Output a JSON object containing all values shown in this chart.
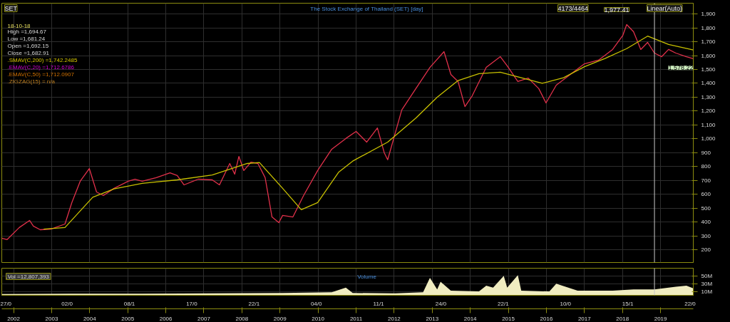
{
  "chart_data": [
    {
      "type": "line",
      "title": "The Stock Exchange of Thailand (SET) [day]",
      "series": [
        {
          "color": "#e0304a",
          "x": [
            2001.69,
            2001.83,
            2002.15,
            2002.42,
            2002.52,
            2002.7,
            2002.98,
            2003.35,
            2003.53,
            2003.75,
            2003.99,
            2004.18,
            2004.36,
            2004.64,
            2005.01,
            2005.19,
            2005.38,
            2005.75,
            2006.11,
            2006.3,
            2006.48,
            2006.85,
            2007.22,
            2007.41,
            2007.68,
            2007.81,
            2007.92,
            2008.05,
            2008.24,
            2008.42,
            2008.61,
            2008.79,
            2008.97,
            2009.07,
            2009.34,
            2009.62,
            2009.99,
            2010.36,
            2010.73,
            2011.0,
            2011.28,
            2011.56,
            2011.74,
            2011.83,
            2012.2,
            2012.57,
            2012.94,
            2013.31,
            2013.49,
            2013.68,
            2013.86,
            2014.05,
            2014.42,
            2014.79,
            2014.97,
            2015.25,
            2015.52,
            2015.8,
            2015.99,
            2016.26,
            2016.63,
            2017.0,
            2017.37,
            2017.74,
            2018.01,
            2018.11,
            2018.29,
            2018.48,
            2018.66,
            2018.84,
            2019.03,
            2019.21,
            2019.4,
            2019.68,
            2019.86
          ],
          "values": [
            285,
            275,
            362,
            413,
            372,
            346,
            351,
            387,
            541,
            695,
            787,
            618,
            592,
            644,
            695,
            710,
            695,
            721,
            756,
            736,
            669,
            710,
            705,
            669,
            823,
            746,
            874,
            772,
            833,
            823,
            721,
            438,
            397,
            449,
            438,
            592,
            772,
            926,
            1003,
            1054,
            977,
            1079,
            900,
            850,
            1208,
            1362,
            1515,
            1628,
            1464,
            1413,
            1233,
            1310,
            1515,
            1592,
            1526,
            1413,
            1438,
            1362,
            1259,
            1387,
            1464,
            1541,
            1567,
            1644,
            1746,
            1823,
            1772,
            1644,
            1695,
            1618,
            1592,
            1644,
            1618,
            1592,
            1578
          ]
        },
        {
          "color": "#c8c000",
          "x": [
            2002.79,
            2003.35,
            2004.08,
            2004.64,
            2005.38,
            2006.3,
            2007.22,
            2008.14,
            2008.46,
            2009.07,
            2009.56,
            2009.99,
            2010.54,
            2010.91,
            2011.83,
            2012.57,
            2013.13,
            2013.68,
            2014.23,
            2014.79,
            2015.34,
            2015.89,
            2016.45,
            2017.0,
            2017.55,
            2018.11,
            2018.66,
            2019.21,
            2019.86
          ],
          "values": [
            350,
            362,
            580,
            640,
            680,
            705,
            740,
            823,
            830,
            644,
            490,
            541,
            760,
            840,
            977,
            1150,
            1300,
            1420,
            1470,
            1480,
            1440,
            1400,
            1440,
            1520,
            1580,
            1650,
            1740,
            1680,
            1640
          ]
        }
      ],
      "xlim": [
        2001.69,
        2019.86
      ],
      "ylim": [
        110,
        1977
      ],
      "xticks": [
        2002,
        2003,
        2004,
        2005,
        2006,
        2007,
        2008,
        2009,
        2010,
        2011,
        2012,
        2013,
        2014,
        2015,
        2016,
        2017,
        2018,
        2019
      ],
      "yticks": [
        200,
        300,
        400,
        500,
        600,
        700,
        800,
        900,
        {
          "value": 1000,
          "label": "1,000"
        },
        {
          "value": 1100,
          "label": "1,100"
        },
        {
          "value": 1200,
          "label": "1,200"
        },
        {
          "value": 1300,
          "label": "1,300"
        },
        {
          "value": 1400,
          "label": "1,400"
        },
        {
          "value": 1500,
          "label": "1,500"
        },
        {
          "value": 1600,
          "label": "1,600"
        },
        {
          "value": 1700,
          "label": "1,700"
        },
        {
          "value": 1800,
          "label": "1,800"
        },
        {
          "value": 1900,
          "label": "1,900"
        }
      ],
      "tick_labels": "y",
      "grid": true,
      "line_style": "solid",
      "ref_lines": [
        {
          "axis": "x",
          "value": 2018.84,
          "label": null,
          "color": "#c8c8c8"
        }
      ],
      "annotations": [
        "SET",
        "4173/4464",
        "1,977.41",
        "Linear(Auto)",
        "18-10-18",
        "High =1,694.67",
        "Low =1,681.24",
        "Open =1,692.15",
        "Close =1,682.91",
        ".SMAV(C,200)  =1,742.2485",
        ".EMAV(C,20)  =1,712.6786",
        ".EMAV(C,50)  =1,712.0907",
        ".ZIGZAG(15)  = n/a",
        {
          "text": "1,578.22",
          "x": 2019.86,
          "y": 1578
        }
      ]
    },
    {
      "type": "area",
      "title": "Volume",
      "x": [
        2001.69,
        2003.53,
        2005.38,
        2007.22,
        2009.07,
        2010.36,
        2010.73,
        2010.91,
        2012.02,
        2012.76,
        2012.94,
        2013.13,
        2013.22,
        2013.49,
        2014.23,
        2014.42,
        2014.6,
        2014.88,
        2014.97,
        2015.25,
        2015.34,
        2016.08,
        2016.26,
        2016.82,
        2017.74,
        2018.29,
        2018.84,
        2019.4,
        2019.68,
        2019.86
      ],
      "values": [
        3,
        4,
        4,
        5,
        6,
        8,
        20,
        6,
        5,
        8,
        45,
        15,
        35,
        12,
        10,
        25,
        20,
        50,
        20,
        52,
        12,
        10,
        30,
        12,
        12,
        15,
        15,
        22,
        25,
        18
      ],
      "color": "#f0ecc0",
      "xlim": [
        2001.69,
        2019.86
      ],
      "ylim": [
        0,
        70
      ],
      "yticks": [
        {
          "value": 10,
          "label": "10M"
        },
        {
          "value": 30,
          "label": "30M"
        },
        {
          "value": 50,
          "label": "50M"
        }
      ],
      "xticks": [
        2002,
        2003,
        2004,
        2005,
        2006,
        2007,
        2008,
        2009,
        2010,
        2011,
        2012,
        2013,
        2014,
        2015,
        2016,
        2017,
        2018,
        2019
      ],
      "grid": true,
      "ref_lines": [
        {
          "axis": "x",
          "value": 2018.84,
          "label": null,
          "color": "#c8c8c8"
        }
      ],
      "annotations": [
        ".Vol  =12,807,393",
        "27/0",
        "02/0",
        "08/1",
        "17/0",
        "22/1",
        "04/0",
        "11/1",
        "24/0",
        "22/1",
        "10/0",
        "15/1",
        "22/0"
      ]
    }
  ]
}
